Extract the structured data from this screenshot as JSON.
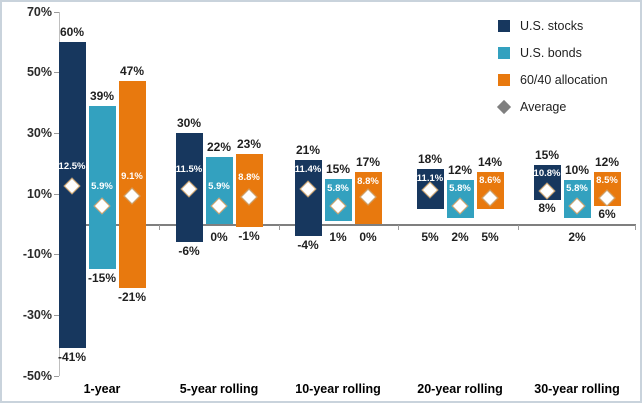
{
  "chart_data": {
    "type": "bar",
    "subtype": "floating-range-bars-with-average-markers",
    "title": "",
    "categories": [
      "1-year",
      "5-year rolling",
      "10-year rolling",
      "20-year rolling",
      "30-year rolling"
    ],
    "y_axis": {
      "min": -50,
      "max": 70,
      "tick_step": 20,
      "ticks": [
        {
          "value": 70,
          "label": "70%"
        },
        {
          "value": 50,
          "label": "50%"
        },
        {
          "value": 30,
          "label": "30%"
        },
        {
          "value": 10,
          "label": "10%"
        },
        {
          "value": -10,
          "label": "-10%"
        },
        {
          "value": -30,
          "label": "-30%"
        },
        {
          "value": -50,
          "label": "-50%"
        }
      ]
    },
    "grid": "off",
    "series": [
      {
        "name": "U.S. stocks",
        "color": "#17375E",
        "points": [
          {
            "max": 60,
            "min": -41,
            "avg": 12.5,
            "max_label": "60%",
            "min_label": "-41%",
            "avg_label": "12.5%"
          },
          {
            "max": 30,
            "min": -6,
            "avg": 11.5,
            "max_label": "30%",
            "min_label": "-6%",
            "avg_label": "11.5%"
          },
          {
            "max": 21,
            "min": -4,
            "avg": 11.4,
            "max_label": "21%",
            "min_label": "-4%",
            "avg_label": "11.4%"
          },
          {
            "max": 18,
            "min": 5,
            "avg": 11.1,
            "max_label": "18%",
            "min_label": "5%",
            "avg_label": "11.1%"
          },
          {
            "max": 15,
            "min": 8,
            "avg": 10.8,
            "max_label": "15%",
            "min_label": "8%",
            "avg_label": "10.8%"
          }
        ]
      },
      {
        "name": "U.S. bonds",
        "color": "#33A1BF",
        "points": [
          {
            "max": 39,
            "min": -15,
            "avg": 5.9,
            "max_label": "39%",
            "min_label": "-15%",
            "avg_label": "5.9%"
          },
          {
            "max": 22,
            "min": 0,
            "avg": 5.9,
            "max_label": "22%",
            "min_label": "0%",
            "avg_label": "5.9%"
          },
          {
            "max": 15,
            "min": 1,
            "avg": 5.8,
            "max_label": "15%",
            "min_label": "1%",
            "avg_label": "5.8%"
          },
          {
            "max": 12,
            "min": 2,
            "avg": 5.8,
            "max_label": "12%",
            "min_label": "2%",
            "avg_label": "5.8%"
          },
          {
            "max": 10,
            "min": 2,
            "avg": 5.8,
            "max_label": "10%",
            "min_label": "2%",
            "avg_label": "5.8%"
          }
        ]
      },
      {
        "name": "60/40 allocation",
        "color": "#E8790E",
        "points": [
          {
            "max": 47,
            "min": -21,
            "avg": 9.1,
            "max_label": "47%",
            "min_label": "-21%",
            "avg_label": "9.1%"
          },
          {
            "max": 23,
            "min": -1,
            "avg": 8.8,
            "max_label": "23%",
            "min_label": "-1%",
            "avg_label": "8.8%"
          },
          {
            "max": 17,
            "min": 0,
            "avg": 8.8,
            "max_label": "17%",
            "min_label": "0%",
            "avg_label": "8.8%"
          },
          {
            "max": 14,
            "min": 5,
            "avg": 8.6,
            "max_label": "14%",
            "min_label": "5%",
            "avg_label": "8.6%"
          },
          {
            "max": 12,
            "min": 6,
            "avg": 8.5,
            "max_label": "12%",
            "min_label": "6%",
            "avg_label": "8.5%"
          }
        ]
      }
    ],
    "average_marker": {
      "shape": "diamond",
      "fill": "#FFFFFF",
      "border": "#C69A62"
    },
    "legend_position": "top-right"
  },
  "legend": {
    "items": [
      {
        "label": "U.S. stocks",
        "swatch": "square",
        "color": "#17375E"
      },
      {
        "label": "U.S. bonds",
        "swatch": "square",
        "color": "#33A1BF"
      },
      {
        "label": "60/40 allocation",
        "swatch": "square",
        "color": "#E8790E"
      },
      {
        "label": "Average",
        "swatch": "diamond",
        "color": "#7F7F7F"
      }
    ]
  },
  "colors": {
    "frame_border": "#C9D3DC",
    "axis_line": "#BFBFBF",
    "zero_line": "#7F7F7F",
    "text": "#1F1F1F"
  }
}
